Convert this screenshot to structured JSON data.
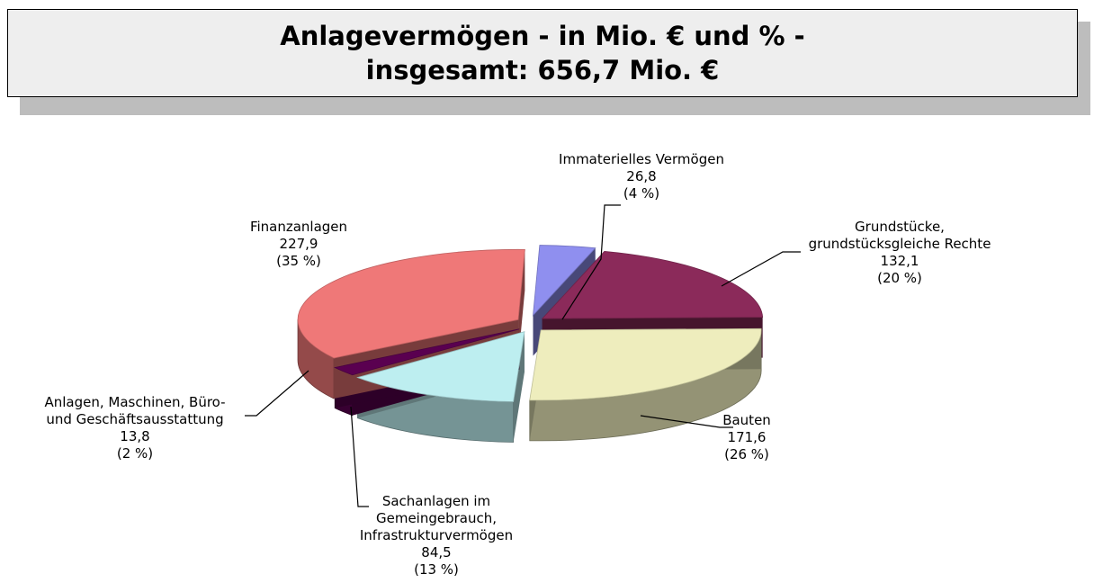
{
  "chart_data": {
    "type": "pie",
    "title": "Anlagevermögen - in Mio. € und % -\ninsgesamt: 656,7 Mio. €",
    "categories": [
      "Immaterielles Vermögen",
      "Grundstücke,\ngrundstücksgleiche Rechte",
      "Bauten",
      "Sachanlagen im\nGemeingebrauch,\nInfrastrukturvermögen",
      "Anlagen, Maschinen, Büro-\nund Geschäftsausstattung",
      "Finanzanlagen"
    ],
    "values": [
      26.8,
      132.1,
      171.6,
      84.5,
      13.8,
      227.9
    ],
    "value_labels": [
      "26,8",
      "132,1",
      "171,6",
      "84,5",
      "13,8",
      "227,9"
    ],
    "percentages": [
      4,
      20,
      26,
      13,
      2,
      35
    ],
    "percentage_labels": [
      "(4 %)",
      "(20 %)",
      "(26 %)",
      "(13 %)",
      "(2 %)",
      "(35 %)"
    ],
    "colors": [
      "#8f8fef",
      "#8b2a5a",
      "#eeedbd",
      "#bdeef0",
      "#5a0050",
      "#ef7878"
    ]
  }
}
